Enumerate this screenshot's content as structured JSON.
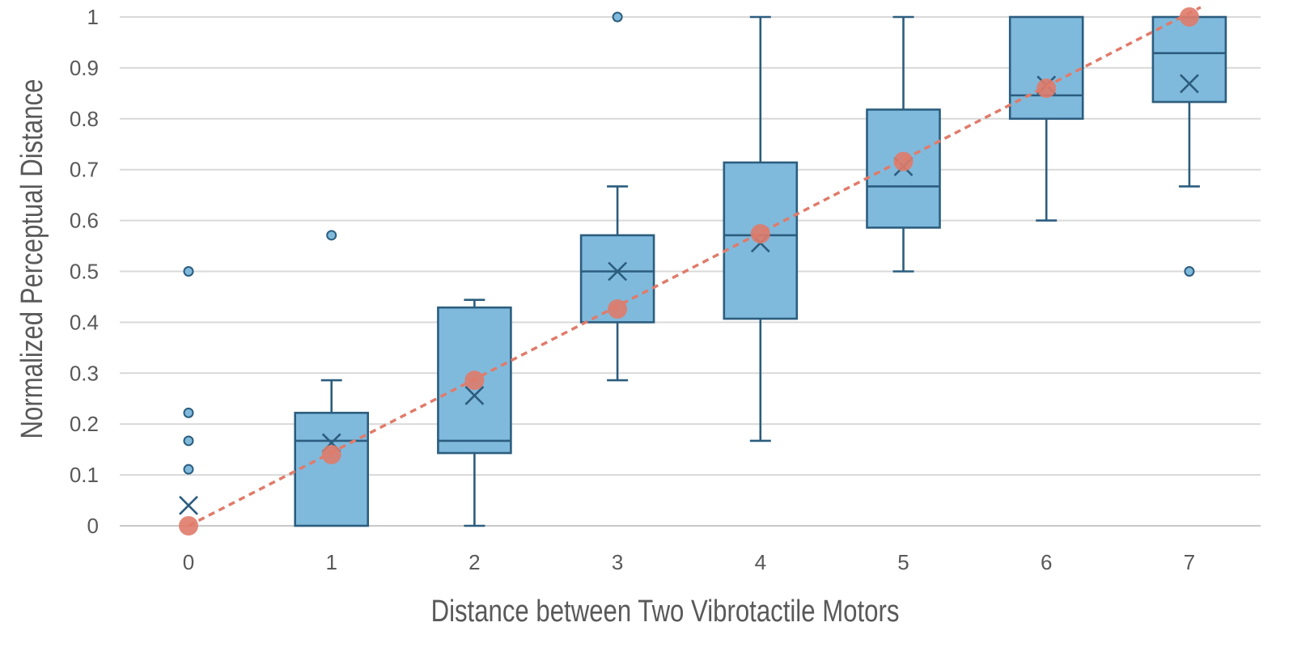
{
  "chart_data": {
    "type": "box",
    "title": "",
    "xlabel": "Distance between Two Vibrotactile Motors",
    "ylabel": "Normalized Perceptual Distance",
    "ylim": [
      0,
      1
    ],
    "yticks": [
      "0",
      "0.1",
      "0.2",
      "0.3",
      "0.4",
      "0.5",
      "0.6",
      "0.7",
      "0.8",
      "0.9",
      "1"
    ],
    "categories": [
      "0",
      "1",
      "2",
      "3",
      "4",
      "5",
      "6",
      "7"
    ],
    "grid": true,
    "colors": {
      "box_fill": "#7fbadd",
      "box_stroke": "#2c5d7e",
      "trend": "#e07b6a",
      "grid": "#d9d9d9",
      "text": "#595959"
    },
    "boxes": [
      {
        "x": 0,
        "whisker_low": 0,
        "q1": 0,
        "median": 0,
        "q3": 0,
        "whisker_high": 0,
        "mean": 0.04,
        "outliers": [
          0.111,
          0.167,
          0.222,
          0.5
        ]
      },
      {
        "x": 1,
        "whisker_low": 0,
        "q1": 0,
        "median": 0.167,
        "q3": 0.222,
        "whisker_high": 0.286,
        "mean": 0.163,
        "outliers": [
          0.571
        ]
      },
      {
        "x": 2,
        "whisker_low": 0,
        "q1": 0.143,
        "median": 0.167,
        "q3": 0.429,
        "whisker_high": 0.444,
        "mean": 0.256,
        "outliers": []
      },
      {
        "x": 3,
        "whisker_low": 0.286,
        "q1": 0.4,
        "median": 0.5,
        "q3": 0.571,
        "whisker_high": 0.667,
        "mean": 0.5,
        "outliers": [
          1
        ]
      },
      {
        "x": 4,
        "whisker_low": 0.167,
        "q1": 0.407,
        "median": 0.571,
        "q3": 0.714,
        "whisker_high": 1,
        "mean": 0.556,
        "outliers": []
      },
      {
        "x": 5,
        "whisker_low": 0.5,
        "q1": 0.586,
        "median": 0.667,
        "q3": 0.818,
        "whisker_high": 1,
        "mean": 0.706,
        "outliers": []
      },
      {
        "x": 6,
        "whisker_low": 0.6,
        "q1": 0.8,
        "median": 0.846,
        "q3": 1,
        "whisker_high": 1,
        "mean": 0.866,
        "outliers": []
      },
      {
        "x": 7,
        "whisker_low": 0.667,
        "q1": 0.833,
        "median": 0.929,
        "q3": 1,
        "whisker_high": 1,
        "mean": 0.869,
        "outliers": [
          0.5
        ]
      }
    ],
    "trend_points": [
      {
        "x": 0,
        "y": 0
      },
      {
        "x": 1,
        "y": 0.14
      },
      {
        "x": 2,
        "y": 0.286
      },
      {
        "x": 3,
        "y": 0.426
      },
      {
        "x": 4,
        "y": 0.574
      },
      {
        "x": 5,
        "y": 0.716
      },
      {
        "x": 6,
        "y": 0.86
      },
      {
        "x": 7,
        "y": 1
      }
    ]
  }
}
